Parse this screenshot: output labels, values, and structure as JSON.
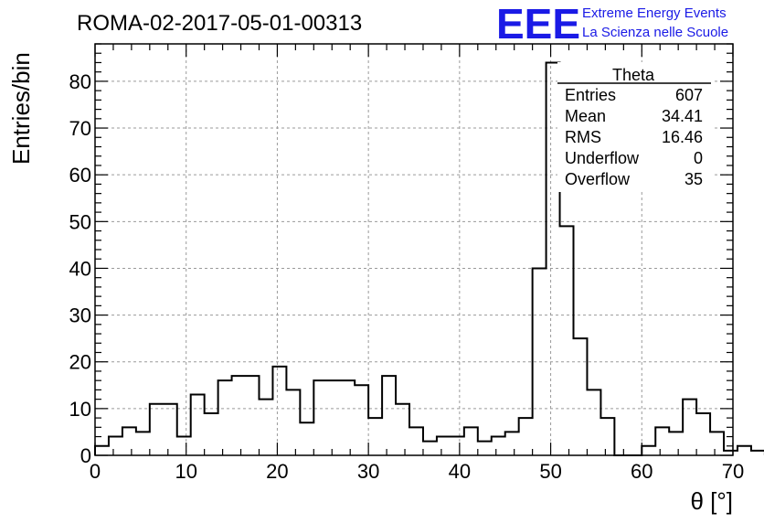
{
  "header": {
    "title": "ROMA-02-2017-05-01-00313"
  },
  "logo": {
    "mark": "EEE",
    "line1": "Extreme Energy Events",
    "line2": "La Scienza nelle Scuole",
    "color": "#1a1ae6"
  },
  "chart_data": {
    "type": "bar",
    "title": "ROMA-02-2017-05-01-00313",
    "xlabel": "θ [°]",
    "ylabel": "Entries/bin",
    "xlim": [
      0,
      70
    ],
    "ylim": [
      0,
      88
    ],
    "grid": true,
    "x_ticks": [
      0,
      10,
      20,
      30,
      40,
      50,
      60,
      70
    ],
    "y_ticks": [
      0,
      10,
      20,
      30,
      40,
      50,
      60,
      70,
      80
    ],
    "bin_width": 1.5,
    "bin_start": 0,
    "values": [
      2,
      4,
      6,
      5,
      11,
      11,
      4,
      13,
      9,
      16,
      17,
      17,
      12,
      19,
      14,
      7,
      16,
      16,
      16,
      15,
      8,
      17,
      11,
      6,
      3,
      4,
      4,
      6,
      3,
      4,
      5,
      8,
      40,
      84,
      49,
      25,
      14,
      8,
      0,
      0,
      2,
      6,
      5,
      12,
      9,
      5,
      1,
      2,
      1
    ],
    "stats_box": {
      "name": "Theta",
      "rows": [
        {
          "label": "Entries",
          "value": "607"
        },
        {
          "label": "Mean",
          "value": "34.41"
        },
        {
          "label": "RMS",
          "value": "16.46"
        },
        {
          "label": "Underflow",
          "value": "0"
        },
        {
          "label": "Overflow",
          "value": "35"
        }
      ]
    }
  }
}
